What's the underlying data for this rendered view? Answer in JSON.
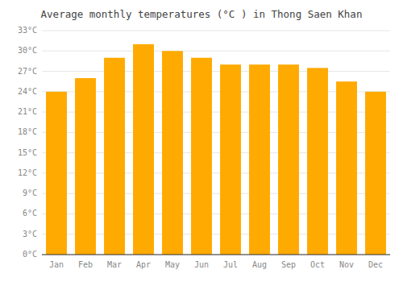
{
  "chart_data": {
    "type": "bar",
    "title": "Average monthly temperatures (°C ) in Thong Saen Khan",
    "categories": [
      "Jan",
      "Feb",
      "Mar",
      "Apr",
      "May",
      "Jun",
      "Jul",
      "Aug",
      "Sep",
      "Oct",
      "Nov",
      "Dec"
    ],
    "values": [
      24,
      26,
      29,
      31,
      30,
      29,
      28,
      28,
      28,
      27.5,
      25.5,
      24
    ],
    "color": "#FFAA00",
    "ylim": [
      0,
      33
    ],
    "yticks": [
      {
        "value": 0,
        "label": "0°C"
      },
      {
        "value": 3,
        "label": "3°C"
      },
      {
        "value": 6,
        "label": "6°C"
      },
      {
        "value": 9,
        "label": "9°C"
      },
      {
        "value": 12,
        "label": "12°C"
      },
      {
        "value": 15,
        "label": "15°C"
      },
      {
        "value": 18,
        "label": "18°C"
      },
      {
        "value": 21,
        "label": "21°C"
      },
      {
        "value": 24,
        "label": "24°C"
      },
      {
        "value": 27,
        "label": "27°C"
      },
      {
        "value": 30,
        "label": "30°C"
      },
      {
        "value": 33,
        "label": "33°C"
      }
    ],
    "grid": true
  }
}
